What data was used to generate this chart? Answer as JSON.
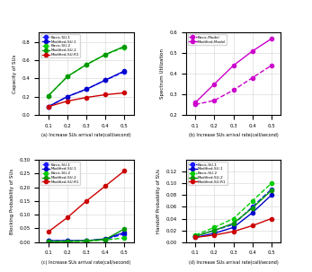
{
  "x": [
    0.1,
    0.2,
    0.3,
    0.4,
    0.5
  ],
  "capacity": {
    "Basic-SU-1": [
      0.09,
      0.2,
      0.28,
      0.38,
      0.47
    ],
    "Modified-SU-1": [
      0.09,
      0.2,
      0.28,
      0.38,
      0.48
    ],
    "Basic-SU-2": [
      0.21,
      0.42,
      0.55,
      0.66,
      0.74
    ],
    "Modified-SU-2": [
      0.21,
      0.42,
      0.55,
      0.66,
      0.75
    ],
    "Modified-SU-R1": [
      0.09,
      0.15,
      0.19,
      0.22,
      0.24
    ]
  },
  "capacity_ylim": [
    0,
    0.9
  ],
  "capacity_yticks": [
    0,
    0.2,
    0.4,
    0.6,
    0.8
  ],
  "spectrum": {
    "Basic-Model": [
      0.25,
      0.27,
      0.32,
      0.38,
      0.44
    ],
    "Modified-Model": [
      0.26,
      0.35,
      0.44,
      0.51,
      0.57
    ]
  },
  "spectrum_ylim": [
    0.2,
    0.6
  ],
  "spectrum_yticks": [
    0.2,
    0.3,
    0.4,
    0.5,
    0.6
  ],
  "blocking": {
    "Basic-SU-1": [
      0.005,
      0.005,
      0.005,
      0.01,
      0.03
    ],
    "Modified-SU-1": [
      0.005,
      0.005,
      0.005,
      0.012,
      0.035
    ],
    "Basic-SU-2": [
      0.002,
      0.002,
      0.003,
      0.008,
      0.015
    ],
    "Modified-SU-2": [
      0.002,
      0.003,
      0.005,
      0.01,
      0.048
    ],
    "Modified-SU-R1": [
      0.038,
      0.09,
      0.15,
      0.205,
      0.26
    ]
  },
  "blocking_ylim": [
    0,
    0.3
  ],
  "blocking_yticks": [
    0,
    0.05,
    0.1,
    0.15,
    0.2,
    0.25,
    0.3
  ],
  "handoff": {
    "Basic-SU-1": [
      0.01,
      0.02,
      0.03,
      0.06,
      0.09
    ],
    "Modified-SU-1": [
      0.008,
      0.015,
      0.025,
      0.05,
      0.08
    ],
    "Basic-SU-2": [
      0.012,
      0.025,
      0.04,
      0.07,
      0.1
    ],
    "Modified-SU-2": [
      0.01,
      0.02,
      0.032,
      0.058,
      0.088
    ],
    "Modified-SU-R1": [
      0.008,
      0.012,
      0.018,
      0.028,
      0.04
    ]
  },
  "handoff_ylim": [
    0,
    0.14
  ],
  "handoff_yticks": [
    0,
    0.02,
    0.04,
    0.06,
    0.08,
    0.1,
    0.12
  ],
  "colors": {
    "Basic-SU-1": "#1a1aff",
    "Modified-SU-1": "#0000cc",
    "Basic-SU-2": "#00cc00",
    "Modified-SU-2": "#009900",
    "Modified-SU-R1": "#cc0000",
    "Basic-Model": "#cc00cc",
    "Modified-Model": "#cc00cc"
  },
  "xticks": [
    0.1,
    0.2,
    0.3,
    0.4,
    0.5
  ],
  "xlabel_a": "(a) Increase SUs arrival rate(call/second)",
  "xlabel_b": "(b) Increase SUs arrival rate(call/second)",
  "xlabel_c": "(c) Increase SUs arrival rate(call/second)",
  "xlabel_d": "(d) Increase SUs arrival rate(call/second)",
  "ylabel_a": "Capacity of SUs",
  "ylabel_b": "Spectrum Utilization",
  "ylabel_c": "Blocking Probability of SUs",
  "ylabel_d": "Handoff Probability of SUs"
}
